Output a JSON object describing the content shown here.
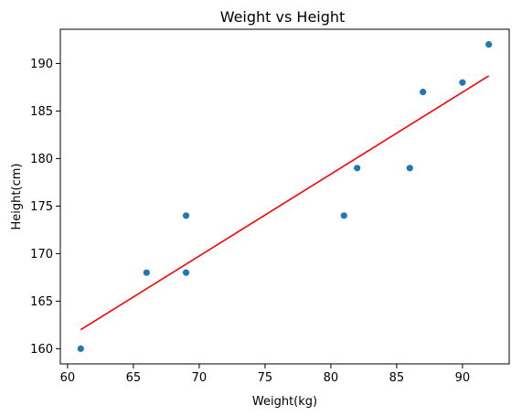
{
  "chart_data": {
    "type": "scatter",
    "title": "Weight vs Height",
    "xlabel": "Weight(kg)",
    "ylabel": "Height(cm)",
    "xlim": [
      59.45,
      93.55
    ],
    "ylim": [
      158.4,
      193.6
    ],
    "xticks": [
      60,
      65,
      70,
      75,
      80,
      85,
      90
    ],
    "yticks": [
      160,
      165,
      170,
      175,
      180,
      185,
      190
    ],
    "grid": false,
    "series": [
      {
        "kind": "scatter",
        "color": "#1f77b4",
        "points": [
          {
            "x": 61,
            "y": 160
          },
          {
            "x": 66,
            "y": 168
          },
          {
            "x": 69,
            "y": 174
          },
          {
            "x": 69,
            "y": 168
          },
          {
            "x": 81,
            "y": 174
          },
          {
            "x": 82,
            "y": 179
          },
          {
            "x": 86,
            "y": 179
          },
          {
            "x": 87,
            "y": 187
          },
          {
            "x": 90,
            "y": 188
          },
          {
            "x": 92,
            "y": 192
          }
        ]
      },
      {
        "kind": "line",
        "color": "#ff0000",
        "points": [
          {
            "x": 61,
            "y": 162.0
          },
          {
            "x": 92,
            "y": 188.7
          }
        ]
      }
    ]
  }
}
